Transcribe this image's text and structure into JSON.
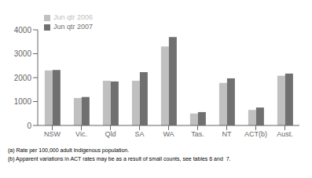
{
  "chart_data": {
    "type": "bar",
    "categories": [
      "NSW",
      "Vic.",
      "Qld",
      "SA",
      "WA",
      "Tas.",
      "NT",
      "ACT(b)",
      "Aust."
    ],
    "series": [
      {
        "name": "Jun qtr 2006",
        "color": "#c0c0c0",
        "values": [
          2300,
          1150,
          1870,
          1870,
          3300,
          500,
          1780,
          650,
          2080
        ]
      },
      {
        "name": "Jun qtr 2007",
        "color": "#707070",
        "values": [
          2320,
          1190,
          1840,
          2230,
          3700,
          560,
          1970,
          750,
          2170
        ]
      }
    ],
    "ylim": [
      0,
      4000
    ],
    "yticks": [
      0,
      1000,
      2000,
      3000,
      4000
    ],
    "grid": false,
    "legend": "upper left",
    "annotations": [
      "(a) Rate per 100,000 adult Indigenous population.",
      "(b) Apparent variations in ACT rates may be as a result of small counts, see tables 6 and  7."
    ]
  }
}
